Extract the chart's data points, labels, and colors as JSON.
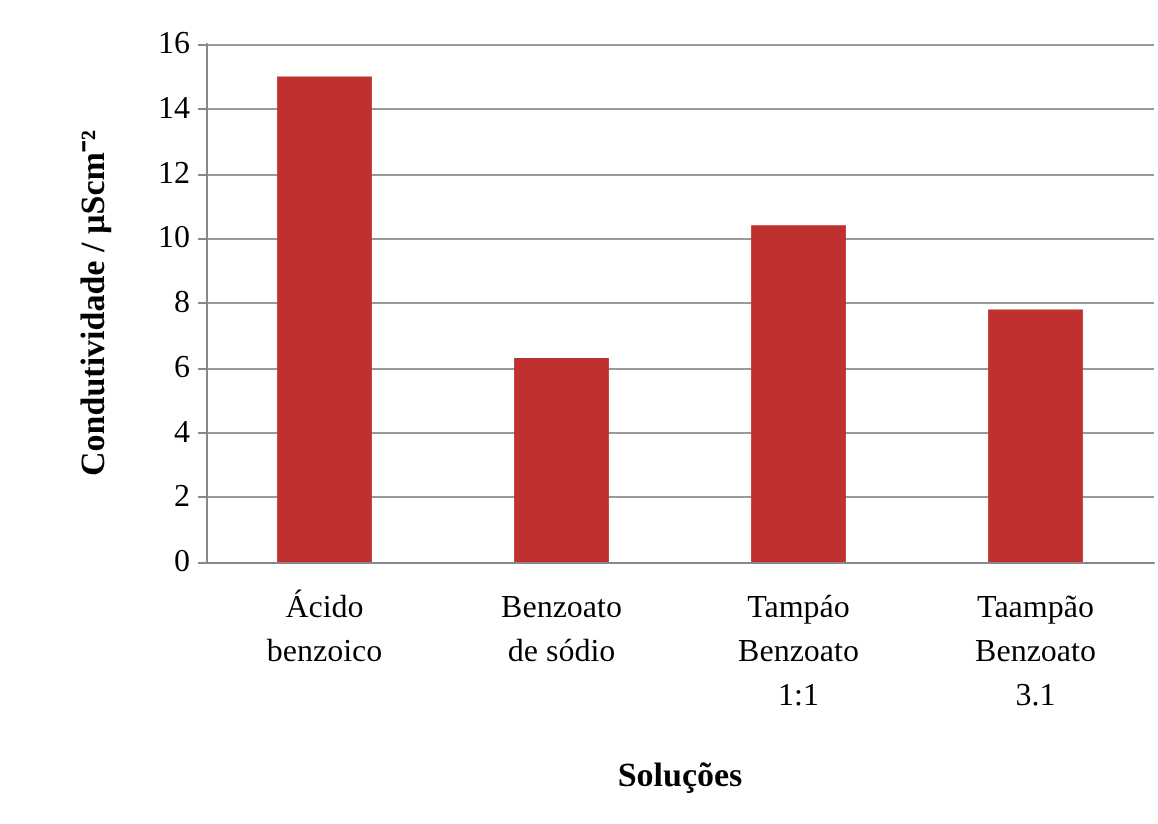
{
  "chart_data": {
    "type": "bar",
    "xlabel": "Soluções",
    "ylabel": "Condutividade / µScm⁻²",
    "categories": [
      "Ácido\nbenzoico",
      "Benzoato\nde sódio",
      "Tampáo\nBenzoato\n1:1",
      "Taampão\nBenzoato\n3.1"
    ],
    "values": [
      15,
      6.3,
      10.4,
      7.8
    ],
    "color": "#c0302f",
    "ylim": [
      0,
      16
    ],
    "yticks": [
      0,
      2,
      4,
      6,
      8,
      10,
      12,
      14,
      16
    ],
    "grid": "y"
  }
}
